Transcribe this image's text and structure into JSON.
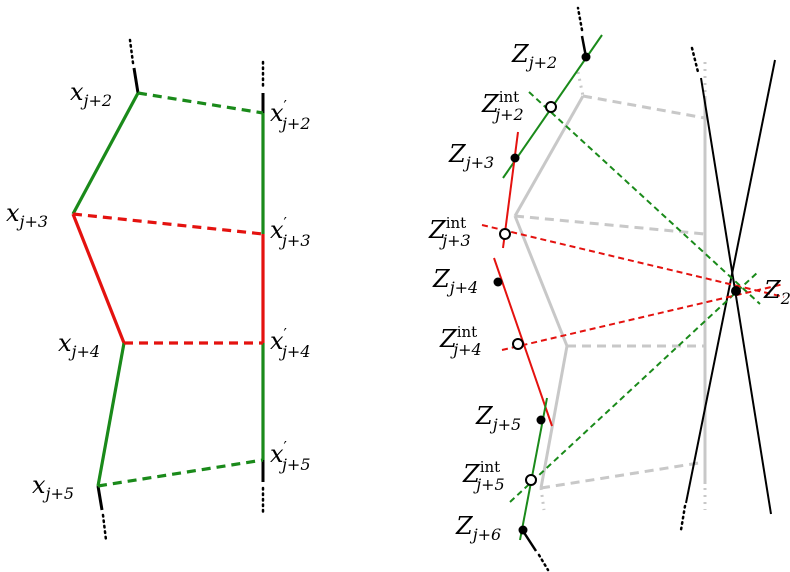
{
  "colors": {
    "green": "#1a8a1a",
    "red": "#e4120f",
    "gray": "#c8c8c8",
    "black": "#000000"
  },
  "left_panel": {
    "labels": {
      "x_j2": {
        "base": "x",
        "sub": "j+2",
        "prime": false
      },
      "x_j3": {
        "base": "x",
        "sub": "j+3",
        "prime": false
      },
      "x_j4": {
        "base": "x",
        "sub": "j+4",
        "prime": false
      },
      "x_j5": {
        "base": "x",
        "sub": "j+5",
        "prime": false
      },
      "xp_j2": {
        "base": "x",
        "sub": "j+2",
        "prime": true
      },
      "xp_j3": {
        "base": "x",
        "sub": "j+3",
        "prime": true
      },
      "xp_j4": {
        "base": "x",
        "sub": "j+4",
        "prime": true
      },
      "xp_j5": {
        "base": "x",
        "sub": "j+5",
        "prime": true
      }
    }
  },
  "right_panel": {
    "labels": {
      "Z_j2": {
        "base": "Z",
        "sub": "j+2",
        "sup": ""
      },
      "Zint_j2": {
        "base": "Z",
        "sub": "j+2",
        "sup": "int"
      },
      "Z_j3": {
        "base": "Z",
        "sub": "j+3",
        "sup": ""
      },
      "Zint_j3": {
        "base": "Z",
        "sub": "j+3",
        "sup": "int"
      },
      "Z_j4": {
        "base": "Z",
        "sub": "j+4",
        "sup": ""
      },
      "Zint_j4": {
        "base": "Z",
        "sub": "j+4",
        "sup": "int"
      },
      "Z_j5": {
        "base": "Z",
        "sub": "j+5",
        "sup": ""
      },
      "Zint_j5": {
        "base": "Z",
        "sub": "j+5",
        "sup": "int"
      },
      "Z_j6": {
        "base": "Z",
        "sub": "j+6",
        "sup": ""
      },
      "Z_2": {
        "base": "Z",
        "sub": "2",
        "sup": ""
      }
    }
  }
}
